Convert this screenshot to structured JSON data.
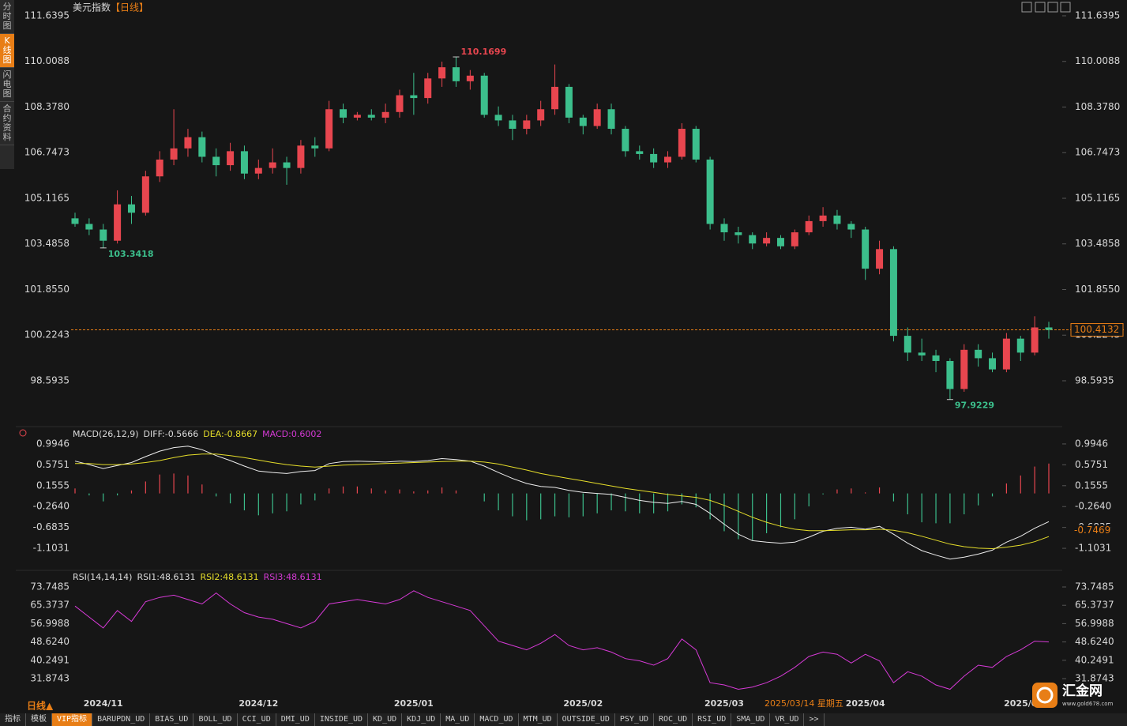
{
  "chart_data": {
    "type": "candlestick",
    "title": "美元指数",
    "period": "【日线】",
    "up_color": "#e8464f",
    "down_color": "#3cbf8c",
    "candles": [
      [
        104.4,
        104.6,
        104.1,
        104.2
      ],
      [
        104.2,
        104.4,
        103.8,
        104.0
      ],
      [
        104.0,
        104.2,
        103.3418,
        103.6
      ],
      [
        103.6,
        105.4,
        103.5,
        104.9
      ],
      [
        104.9,
        105.2,
        104.2,
        104.6
      ],
      [
        104.6,
        106.1,
        104.5,
        105.9
      ],
      [
        105.9,
        106.8,
        105.7,
        106.5
      ],
      [
        106.5,
        108.3,
        106.3,
        106.9
      ],
      [
        106.9,
        107.6,
        106.6,
        107.3
      ],
      [
        107.3,
        107.5,
        106.4,
        106.6
      ],
      [
        106.6,
        106.9,
        105.9,
        106.3
      ],
      [
        106.3,
        107.1,
        106.1,
        106.8
      ],
      [
        106.8,
        107.0,
        105.8,
        106.0
      ],
      [
        106.0,
        106.5,
        105.8,
        106.2
      ],
      [
        106.2,
        106.9,
        106.0,
        106.4
      ],
      [
        106.4,
        106.6,
        105.6,
        106.2
      ],
      [
        106.2,
        107.2,
        106.0,
        107.0
      ],
      [
        107.0,
        107.3,
        106.6,
        106.9
      ],
      [
        106.9,
        108.6,
        106.8,
        108.3
      ],
      [
        108.3,
        108.5,
        107.8,
        108.0
      ],
      [
        108.0,
        108.2,
        107.9,
        108.1
      ],
      [
        108.1,
        108.3,
        107.9,
        108.0
      ],
      [
        108.0,
        108.5,
        107.8,
        108.2
      ],
      [
        108.2,
        109.0,
        108.0,
        108.8
      ],
      [
        108.8,
        109.6,
        108.1,
        108.7
      ],
      [
        108.7,
        109.6,
        108.5,
        109.4
      ],
      [
        109.4,
        110.0,
        109.1,
        109.8
      ],
      [
        109.8,
        110.1699,
        109.1,
        109.3
      ],
      [
        109.3,
        109.7,
        109.0,
        109.5
      ],
      [
        109.5,
        109.6,
        108.0,
        108.1
      ],
      [
        108.1,
        108.4,
        107.7,
        107.9
      ],
      [
        107.9,
        108.1,
        107.2,
        107.6
      ],
      [
        107.6,
        108.1,
        107.4,
        107.9
      ],
      [
        107.9,
        108.6,
        107.7,
        108.3
      ],
      [
        108.3,
        109.9,
        108.1,
        109.1
      ],
      [
        109.1,
        109.2,
        107.8,
        108.0
      ],
      [
        108.0,
        108.1,
        107.4,
        107.7
      ],
      [
        107.7,
        108.5,
        107.6,
        108.3
      ],
      [
        108.3,
        108.5,
        107.4,
        107.6
      ],
      [
        107.6,
        107.7,
        106.6,
        106.8
      ],
      [
        106.8,
        107.0,
        106.5,
        106.7
      ],
      [
        106.7,
        106.9,
        106.2,
        106.4
      ],
      [
        106.4,
        106.8,
        106.2,
        106.6
      ],
      [
        106.6,
        107.8,
        106.5,
        107.6
      ],
      [
        107.6,
        107.7,
        106.4,
        106.5
      ],
      [
        106.5,
        106.6,
        104.0,
        104.2
      ],
      [
        104.2,
        104.4,
        103.6,
        103.9
      ],
      [
        103.9,
        104.1,
        103.5,
        103.8
      ],
      [
        103.8,
        103.9,
        103.3,
        103.5
      ],
      [
        103.5,
        103.9,
        103.4,
        103.7
      ],
      [
        103.7,
        103.8,
        103.3,
        103.4
      ],
      [
        103.4,
        104.0,
        103.3,
        103.9
      ],
      [
        103.9,
        104.5,
        103.8,
        104.3
      ],
      [
        104.3,
        104.8,
        104.1,
        104.5
      ],
      [
        104.5,
        104.7,
        104.0,
        104.2
      ],
      [
        104.2,
        104.3,
        103.7,
        104.0
      ],
      [
        104.0,
        104.1,
        102.2,
        102.6
      ],
      [
        102.6,
        103.6,
        102.4,
        103.3
      ],
      [
        103.3,
        103.4,
        100.0,
        100.2
      ],
      [
        100.2,
        100.5,
        99.3,
        99.6
      ],
      [
        99.6,
        100.1,
        99.3,
        99.5
      ],
      [
        99.5,
        99.7,
        98.9,
        99.3
      ],
      [
        99.3,
        99.4,
        97.9229,
        98.3
      ],
      [
        98.3,
        99.9,
        98.2,
        99.7
      ],
      [
        99.7,
        99.9,
        99.1,
        99.4
      ],
      [
        99.4,
        99.6,
        98.9,
        99.0
      ],
      [
        99.0,
        100.3,
        98.9,
        100.1
      ],
      [
        100.1,
        100.2,
        99.3,
        99.6
      ],
      [
        99.6,
        100.9,
        99.5,
        100.5
      ],
      [
        100.5,
        100.7,
        100.1,
        100.4132
      ]
    ],
    "ylim": [
      97.0967,
      112.063
    ],
    "yticks": [
      111.6395,
      110.0088,
      {
        "value": 108.378,
        "label": "108.3780"
      },
      106.7473,
      105.1165,
      103.4858,
      {
        "value": 101.855,
        "label": "101.8550"
      },
      100.2243,
      98.5935
    ],
    "annotations": [
      {
        "index": 27,
        "value": 110.1699,
        "color": "#e8464f",
        "side": "high"
      },
      {
        "index": 2,
        "value": 103.3418,
        "color": "#3cbf8c",
        "side": "low"
      },
      {
        "index": 62,
        "value": 97.9229,
        "color": "#3cbf8c",
        "side": "low"
      }
    ],
    "last_price": 100.4132,
    "x_labels": [
      {
        "index": 2,
        "label": "2024/11"
      },
      {
        "index": 13,
        "label": "2024/12"
      },
      {
        "index": 24,
        "label": "2025/01"
      },
      {
        "index": 36,
        "label": "2025/02"
      },
      {
        "index": 46,
        "label": "2025/03"
      },
      {
        "index": 56,
        "label": "2025/04"
      },
      {
        "index": 67,
        "label": "2025/0"
      }
    ],
    "cursor_date": "2025/03/14 星期五",
    "period_button": "日线▲",
    "macd": {
      "header": [
        {
          "text": "MACD(26,12,9)",
          "color": "#dddddd"
        },
        {
          "text": "DIFF:-0.5666",
          "color": "#dddddd"
        },
        {
          "text": "DEA:-0.8667",
          "color": "#e6de2a"
        },
        {
          "text": "MACD:0.6002",
          "color": "#d63ad6"
        }
      ],
      "ylim": [
        -1.5147,
        1.2637
      ],
      "yticks": [
        0.9946,
        0.5751,
        0.1555,
        {
          "value": -0.264,
          "label": "-0.2640"
        },
        -0.6835,
        -1.1031
      ],
      "cursor_value": -0.7469,
      "series": [
        {
          "name": "DIFF",
          "color": "#eeeeee",
          "values": [
            0.65,
            0.58,
            0.5,
            0.56,
            0.62,
            0.74,
            0.85,
            0.92,
            0.95,
            0.88,
            0.76,
            0.66,
            0.55,
            0.45,
            0.42,
            0.4,
            0.44,
            0.46,
            0.6,
            0.64,
            0.65,
            0.64,
            0.63,
            0.65,
            0.64,
            0.66,
            0.7,
            0.68,
            0.65,
            0.55,
            0.42,
            0.3,
            0.2,
            0.14,
            0.12,
            0.06,
            0.02,
            0.0,
            -0.02,
            -0.08,
            -0.14,
            -0.18,
            -0.2,
            -0.16,
            -0.22,
            -0.4,
            -0.62,
            -0.82,
            -0.95,
            -0.98,
            -1.0,
            -0.98,
            -0.88,
            -0.76,
            -0.7,
            -0.68,
            -0.72,
            -0.66,
            -0.82,
            -1.0,
            -1.15,
            -1.24,
            -1.32,
            -1.28,
            -1.22,
            -1.14,
            -0.98,
            -0.86,
            -0.7,
            -0.5666
          ]
        },
        {
          "name": "DEA",
          "color": "#e6de2a",
          "values": [
            0.6,
            0.6,
            0.58,
            0.58,
            0.59,
            0.62,
            0.66,
            0.72,
            0.77,
            0.79,
            0.79,
            0.76,
            0.72,
            0.67,
            0.62,
            0.58,
            0.55,
            0.53,
            0.55,
            0.57,
            0.58,
            0.59,
            0.6,
            0.61,
            0.62,
            0.63,
            0.64,
            0.65,
            0.65,
            0.63,
            0.59,
            0.53,
            0.47,
            0.4,
            0.35,
            0.3,
            0.25,
            0.2,
            0.15,
            0.1,
            0.06,
            0.02,
            -0.02,
            -0.05,
            -0.08,
            -0.14,
            -0.24,
            -0.36,
            -0.48,
            -0.58,
            -0.66,
            -0.72,
            -0.75,
            -0.75,
            -0.74,
            -0.73,
            -0.73,
            -0.72,
            -0.74,
            -0.79,
            -0.86,
            -0.94,
            -1.02,
            -1.07,
            -1.1,
            -1.11,
            -1.08,
            -1.04,
            -0.97,
            -0.8667
          ]
        }
      ],
      "histogram": [
        0.1,
        -0.04,
        -0.16,
        -0.04,
        0.06,
        0.24,
        0.38,
        0.4,
        0.36,
        0.18,
        -0.06,
        -0.2,
        -0.34,
        -0.44,
        -0.4,
        -0.36,
        -0.22,
        -0.14,
        0.1,
        0.14,
        0.14,
        0.1,
        0.06,
        0.08,
        0.04,
        0.06,
        0.12,
        0.06,
        0.0,
        -0.16,
        -0.34,
        -0.46,
        -0.54,
        -0.52,
        -0.46,
        -0.48,
        -0.46,
        -0.4,
        -0.34,
        -0.36,
        -0.4,
        -0.4,
        -0.36,
        -0.22,
        -0.28,
        -0.52,
        -0.76,
        -0.92,
        -0.94,
        -0.8,
        -0.68,
        -0.52,
        -0.26,
        -0.02,
        0.08,
        0.1,
        0.02,
        0.12,
        -0.16,
        -0.42,
        -0.58,
        -0.6,
        -0.6,
        -0.42,
        -0.24,
        -0.06,
        0.2,
        0.36,
        0.54,
        0.6002
      ]
    },
    "rsi": {
      "header": [
        {
          "text": "RSI(14,14,14)",
          "color": "#dddddd"
        },
        {
          "text": "RSI1:48.6131",
          "color": "#dddddd"
        },
        {
          "text": "RSI2:48.6131",
          "color": "#e6de2a"
        },
        {
          "text": "RSI3:48.6131",
          "color": "#d63ad6"
        }
      ],
      "ylim": [
        24.294,
        80.246
      ],
      "yticks": [
        73.7485,
        65.3737,
        56.9988,
        {
          "value": 48.624,
          "label": "48.6240"
        },
        40.2491,
        31.8743
      ],
      "series": [
        {
          "name": "RSI",
          "color": "#d63ad6",
          "values": [
            65,
            60,
            55,
            63,
            58,
            67,
            69,
            70,
            68,
            66,
            71,
            66,
            62,
            60,
            59,
            57,
            55,
            58,
            66,
            67,
            68,
            67,
            66,
            68,
            72,
            69,
            67,
            65,
            63,
            56,
            49,
            47,
            45,
            48,
            52,
            47,
            45,
            46,
            44,
            41,
            40,
            38,
            41,
            50,
            45,
            30,
            29,
            27,
            28,
            30,
            33,
            37,
            42,
            44,
            43,
            39,
            43,
            40,
            30,
            35,
            33,
            29,
            27,
            33,
            38,
            37,
            42,
            45,
            49,
            48.6131
          ]
        }
      ]
    }
  },
  "sidebar": [
    "分时图",
    "K线图",
    "闪电图",
    "合约资料"
  ],
  "toolbar": [
    "指标",
    "模板",
    "VIP指标",
    "BARUPDN_UD",
    "BIAS_UD",
    "BOLL_UD",
    "CCI_UD",
    "DMI_UD",
    "INSIDE_UD",
    "KD_UD",
    "KDJ_UD",
    "MA_UD",
    "MACD_UD",
    "MTM_UD",
    "OUTSIDE_UD",
    "PSY_UD",
    "ROC_UD",
    "RSI_UD",
    "SMA_UD",
    "VR_UD",
    ">>"
  ],
  "logo": {
    "name": "汇金网",
    "url": "www.gold678.com"
  }
}
